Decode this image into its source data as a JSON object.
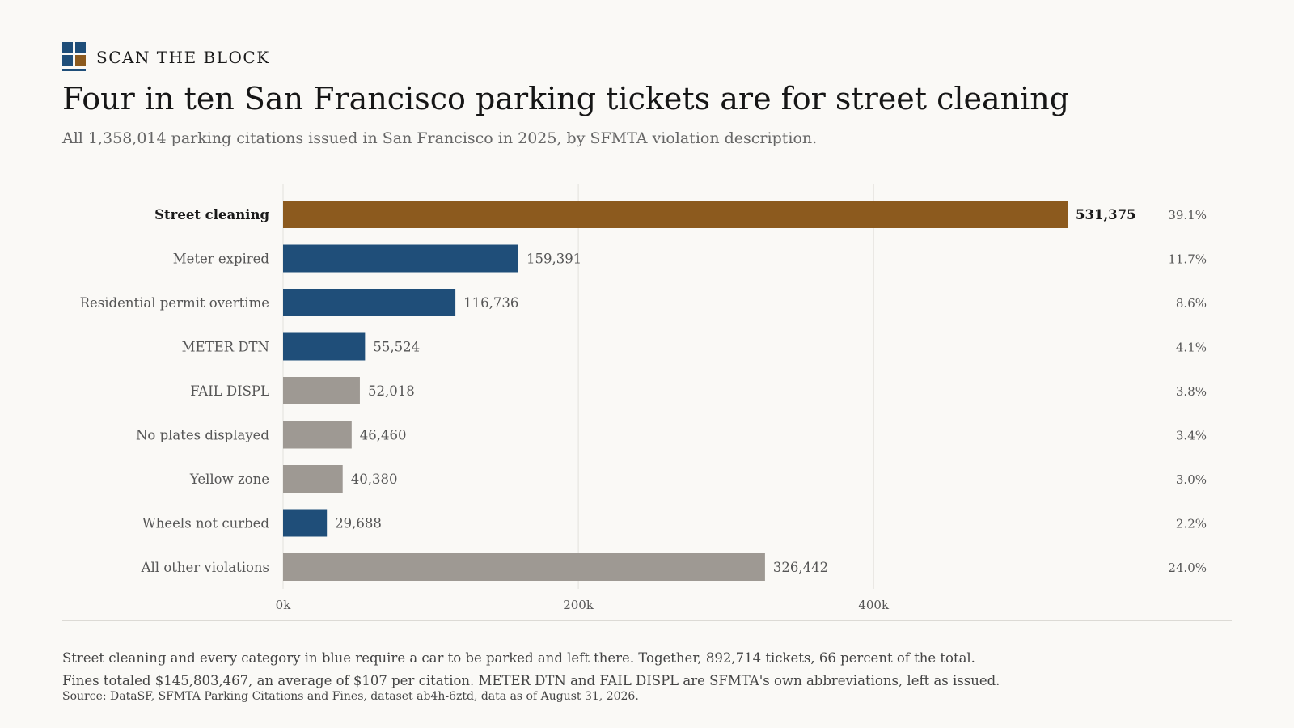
{
  "brand": {
    "name": "SCAN THE BLOCK",
    "logo_colors": [
      "#1f4e79",
      "#1f4e79",
      "#1f4e79",
      "#8c5a1e"
    ]
  },
  "title": "Four in ten San Francisco parking tickets are for street cleaning",
  "subtitle": "All 1,358,014 parking citations issued in San Francisco in 2025, by SFMTA violation description.",
  "notes": [
    "Street cleaning and every category in blue require a car to be parked and left there. Together, 892,714 tickets, 66 percent of the total.",
    "Fines totaled $145,803,467, an average of $107 per citation. METER DTN and FAIL DISPL are SFMTA's own abbreviations, left as issued."
  ],
  "source": "Source: DataSF, SFMTA Parking Citations and Fines, dataset ab4h-6ztd, data as of August 31, 2026.",
  "colors": {
    "highlight": "#8c5a1e",
    "blue": "#1f4e79",
    "gray": "#9e9993",
    "grid": "#e3e1dc",
    "text": "#555555",
    "strong_text": "#1a1a1a"
  },
  "chart_data": {
    "type": "bar",
    "orientation": "horizontal",
    "categories": [
      "Street cleaning",
      "Meter expired",
      "Residential permit overtime",
      "METER DTN",
      "FAIL DISPL",
      "No plates displayed",
      "Yellow zone",
      "Wheels not curbed",
      "All other violations"
    ],
    "values": [
      531375,
      159391,
      116736,
      55524,
      52018,
      46460,
      40380,
      29688,
      326442
    ],
    "value_labels": [
      "531,375",
      "159,391",
      "116,736",
      "55,524",
      "52,018",
      "46,460",
      "40,380",
      "29,688",
      "326,442"
    ],
    "percent_labels": [
      "39.1%",
      "11.7%",
      "8.6%",
      "4.1%",
      "3.8%",
      "3.4%",
      "3.0%",
      "2.2%",
      "24.0%"
    ],
    "color_groups": [
      "highlight",
      "blue",
      "blue",
      "blue",
      "gray",
      "gray",
      "gray",
      "blue",
      "gray"
    ],
    "highlighted_category": "Street cleaning",
    "x_ticks": [
      0,
      200000,
      400000
    ],
    "x_tick_labels": [
      "0k",
      "200k",
      "400k"
    ],
    "xlim": [
      0,
      531375
    ],
    "grid": true
  }
}
